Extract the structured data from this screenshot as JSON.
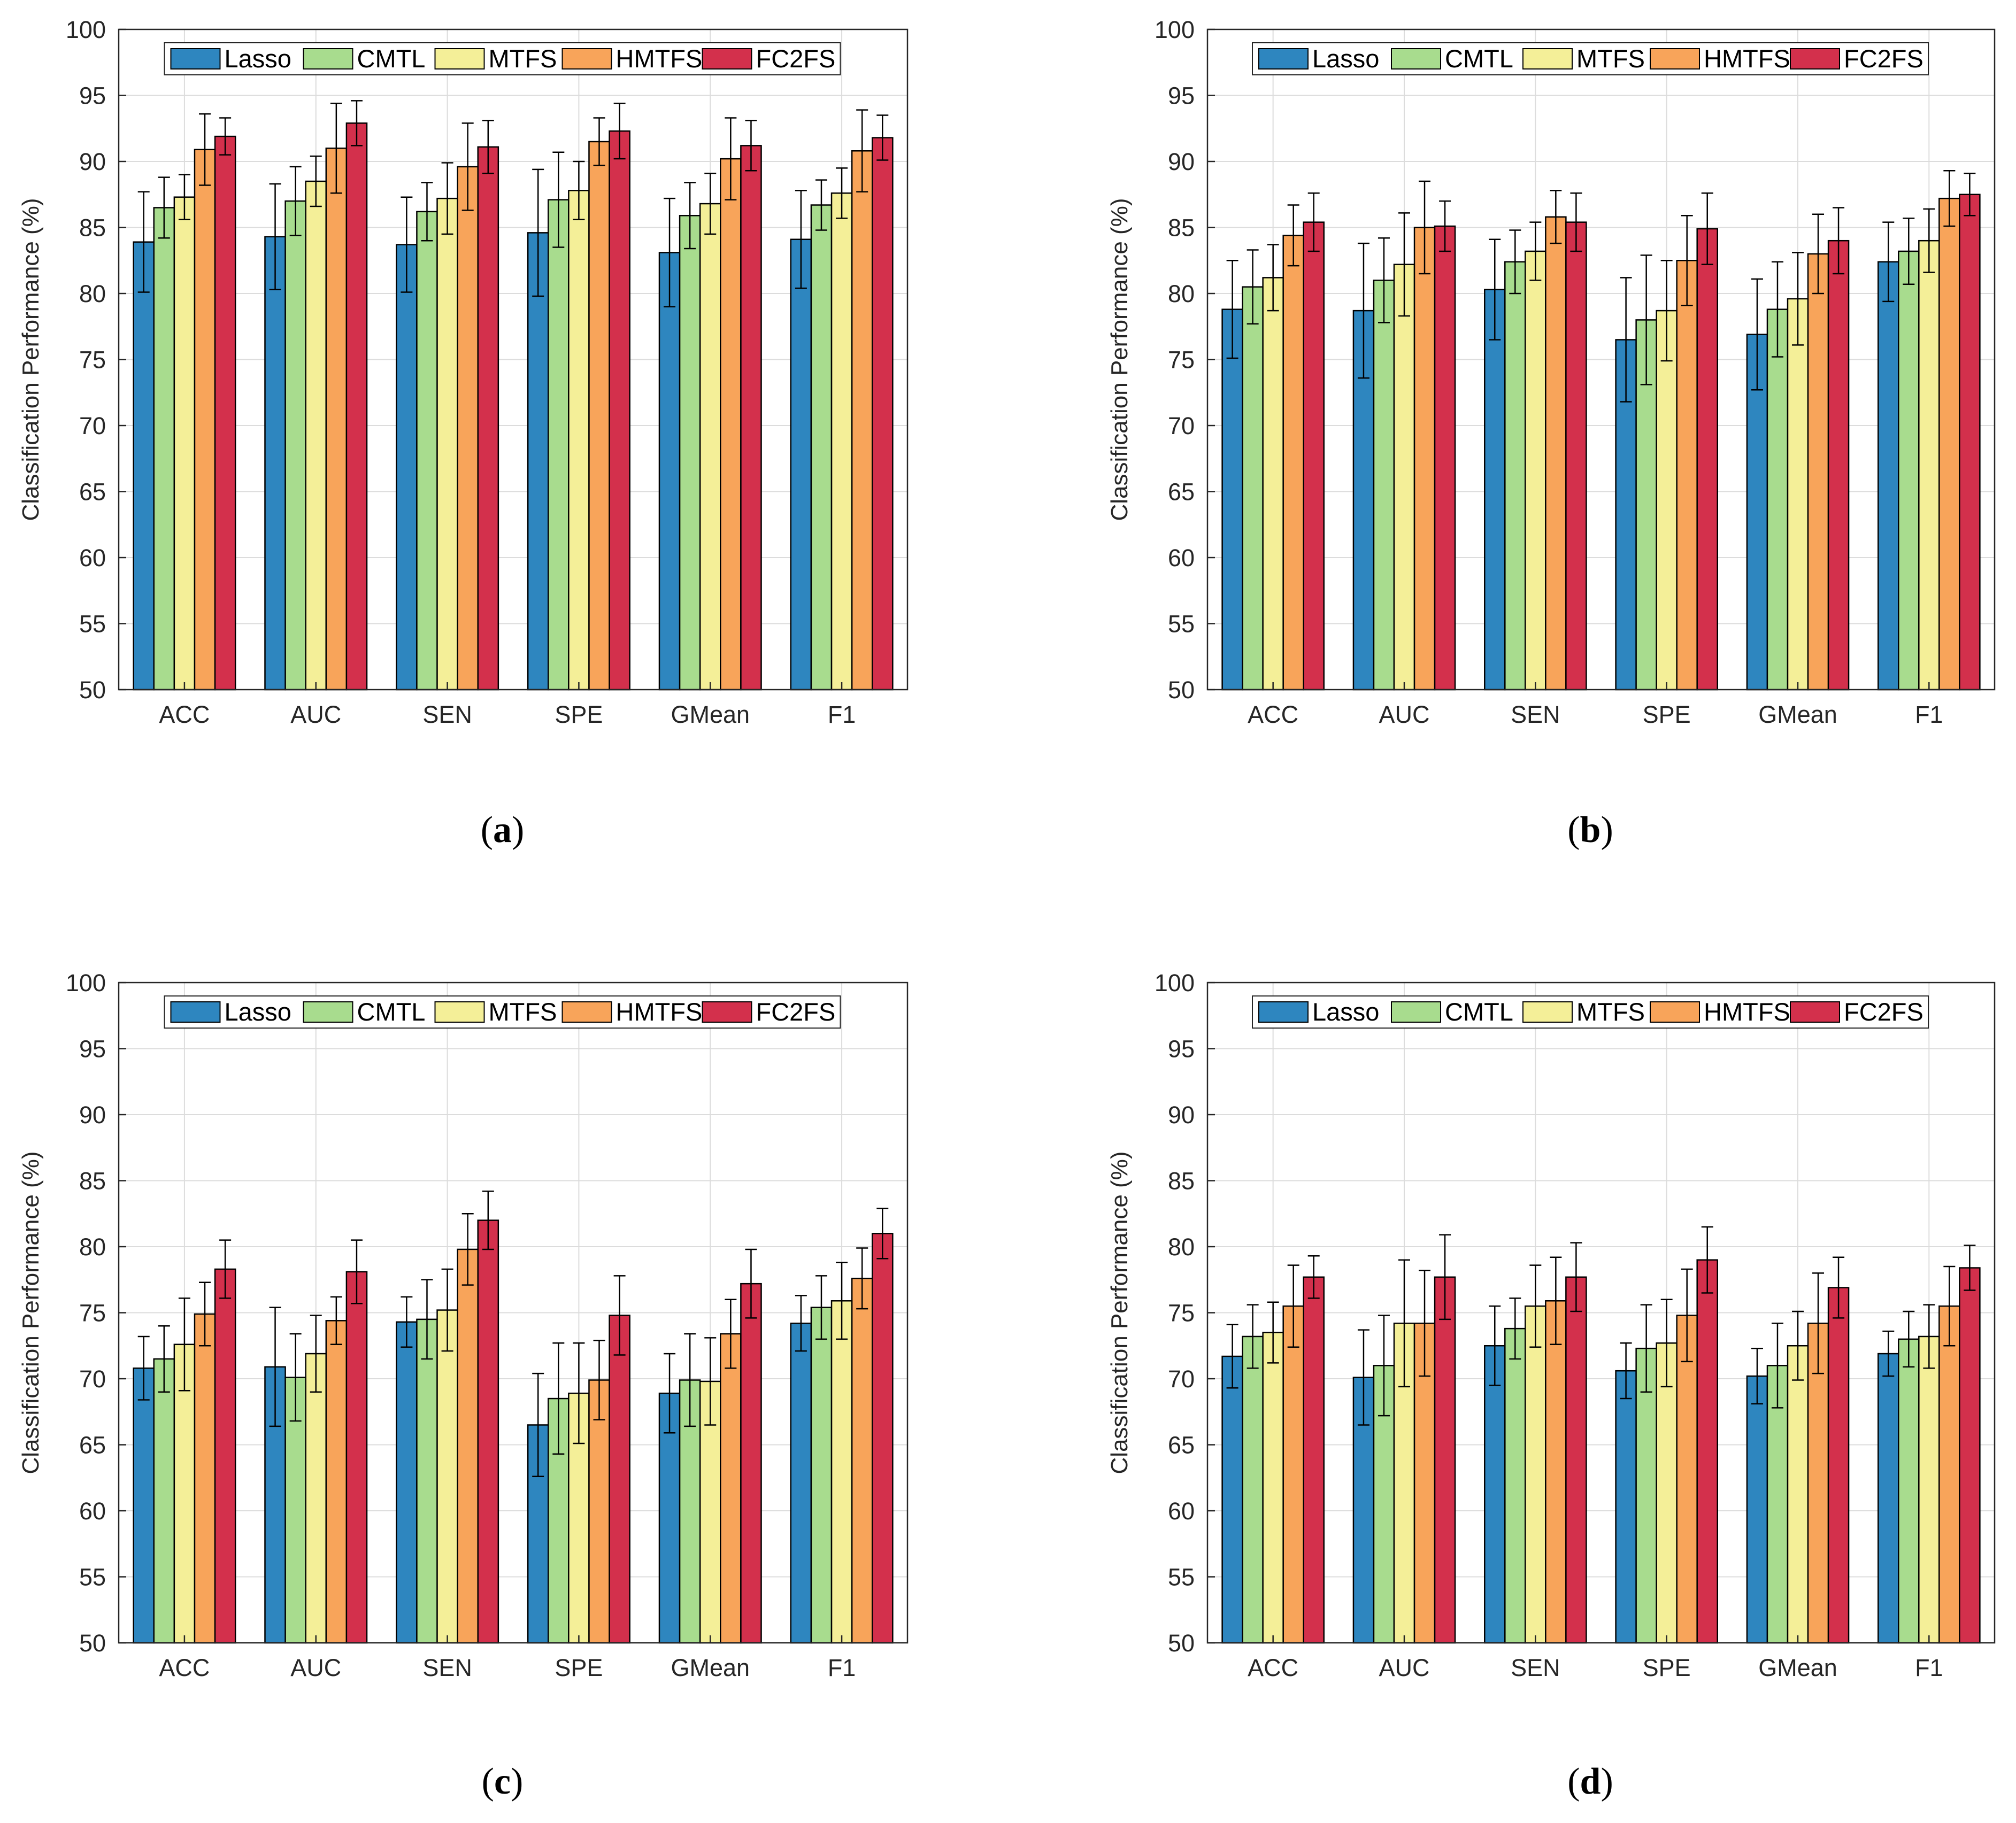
{
  "colors": {
    "Lasso": "#2e86bf",
    "CMTL": "#a8dc8e",
    "MTFS": "#f4ef98",
    "HMTFS": "#f8a45a",
    "FC2FS": "#d3304c",
    "grid": "#dcdcdc",
    "axis": "#262626",
    "errorbar": "#000000"
  },
  "chart_data": [
    {
      "type": "bar",
      "panel_label": "a",
      "ylabel": "Classification Performance (%)",
      "ylim": [
        50,
        100
      ],
      "yticks": [
        "50",
        "55",
        "60",
        "65",
        "70",
        "75",
        "80",
        "85",
        "90",
        "95",
        "100"
      ],
      "grid": true,
      "legend_location": "top",
      "categories": [
        "ACC",
        "AUC",
        "SEN",
        "SPE",
        "GMean",
        "F1"
      ],
      "series": [
        {
          "name": "Lasso",
          "values": [
            83.9,
            84.3,
            83.7,
            84.6,
            83.1,
            84.1
          ],
          "errors": [
            3.8,
            4.0,
            3.6,
            4.8,
            4.1,
            3.7
          ]
        },
        {
          "name": "CMTL",
          "values": [
            86.5,
            87.0,
            86.2,
            87.1,
            85.9,
            86.7
          ],
          "errors": [
            2.3,
            2.6,
            2.2,
            3.6,
            2.5,
            1.9
          ]
        },
        {
          "name": "MTFS",
          "values": [
            87.3,
            88.5,
            87.2,
            87.8,
            86.8,
            87.6
          ],
          "errors": [
            1.7,
            1.9,
            2.7,
            2.2,
            2.3,
            1.9
          ]
        },
        {
          "name": "HMTFS",
          "values": [
            90.9,
            91.0,
            89.6,
            91.5,
            90.2,
            90.8
          ],
          "errors": [
            2.7,
            3.4,
            3.3,
            1.8,
            3.1,
            3.1
          ]
        },
        {
          "name": "FC2FS",
          "values": [
            91.9,
            92.9,
            91.1,
            92.3,
            91.2,
            91.8
          ],
          "errors": [
            1.4,
            1.7,
            2.0,
            2.1,
            1.9,
            1.7
          ]
        }
      ]
    },
    {
      "type": "bar",
      "panel_label": "b",
      "ylabel": "Classification Performance (%)",
      "ylim": [
        50,
        100
      ],
      "yticks": [
        "50",
        "55",
        "60",
        "65",
        "70",
        "75",
        "80",
        "85",
        "90",
        "95",
        "100"
      ],
      "grid": true,
      "legend_location": "top",
      "categories": [
        "ACC",
        "AUC",
        "SEN",
        "SPE",
        "GMean",
        "F1"
      ],
      "series": [
        {
          "name": "Lasso",
          "values": [
            78.8,
            78.7,
            80.3,
            76.5,
            76.9,
            82.4
          ],
          "errors": [
            3.7,
            5.1,
            3.8,
            4.7,
            4.2,
            3.0
          ]
        },
        {
          "name": "CMTL",
          "values": [
            80.5,
            81.0,
            82.4,
            78.0,
            78.8,
            83.2
          ],
          "errors": [
            2.8,
            3.2,
            2.4,
            4.9,
            3.6,
            2.5
          ]
        },
        {
          "name": "MTFS",
          "values": [
            81.2,
            82.2,
            83.2,
            78.7,
            79.6,
            84.0
          ],
          "errors": [
            2.5,
            3.9,
            2.2,
            3.8,
            3.5,
            2.4
          ]
        },
        {
          "name": "HMTFS",
          "values": [
            84.4,
            85.0,
            85.8,
            82.5,
            83.0,
            87.2
          ],
          "errors": [
            2.3,
            3.5,
            2.0,
            3.4,
            3.0,
            2.1
          ]
        },
        {
          "name": "FC2FS",
          "values": [
            85.4,
            85.1,
            85.4,
            84.9,
            84.0,
            87.5
          ],
          "errors": [
            2.2,
            1.9,
            2.2,
            2.7,
            2.5,
            1.6
          ]
        }
      ]
    },
    {
      "type": "bar",
      "panel_label": "c",
      "ylabel": "Classification Performance (%)",
      "ylim": [
        50,
        100
      ],
      "yticks": [
        "50",
        "55",
        "60",
        "65",
        "70",
        "75",
        "80",
        "85",
        "90",
        "95",
        "100"
      ],
      "grid": true,
      "legend_location": "top",
      "categories": [
        "ACC",
        "AUC",
        "SEN",
        "SPE",
        "GMean",
        "F1"
      ],
      "series": [
        {
          "name": "Lasso",
          "values": [
            70.8,
            70.9,
            74.3,
            66.5,
            68.9,
            74.2
          ],
          "errors": [
            2.4,
            4.5,
            1.9,
            3.9,
            3.0,
            2.1
          ]
        },
        {
          "name": "CMTL",
          "values": [
            71.5,
            70.1,
            74.5,
            68.5,
            69.9,
            75.4
          ],
          "errors": [
            2.5,
            3.3,
            3.0,
            4.2,
            3.5,
            2.4
          ]
        },
        {
          "name": "MTFS",
          "values": [
            72.6,
            71.9,
            75.2,
            68.9,
            69.8,
            75.9
          ],
          "errors": [
            3.5,
            2.9,
            3.1,
            3.8,
            3.3,
            2.9
          ]
        },
        {
          "name": "HMTFS",
          "values": [
            74.9,
            74.4,
            79.8,
            69.9,
            73.4,
            77.6
          ],
          "errors": [
            2.4,
            1.8,
            2.7,
            3.0,
            2.6,
            2.3
          ]
        },
        {
          "name": "FC2FS",
          "values": [
            78.3,
            78.1,
            82.0,
            74.8,
            77.2,
            81.0
          ],
          "errors": [
            2.2,
            2.4,
            2.2,
            3.0,
            2.6,
            1.9
          ]
        }
      ]
    },
    {
      "type": "bar",
      "panel_label": "d",
      "ylabel": "Classification Performance (%)",
      "ylim": [
        50,
        100
      ],
      "yticks": [
        "50",
        "55",
        "60",
        "65",
        "70",
        "75",
        "80",
        "85",
        "90",
        "95",
        "100"
      ],
      "grid": true,
      "legend_location": "top",
      "categories": [
        "ACC",
        "AUC",
        "SEN",
        "SPE",
        "GMean",
        "F1"
      ],
      "series": [
        {
          "name": "Lasso",
          "values": [
            71.7,
            70.1,
            72.5,
            70.6,
            70.2,
            71.9
          ],
          "errors": [
            2.4,
            3.6,
            3.0,
            2.1,
            2.1,
            1.7
          ]
        },
        {
          "name": "CMTL",
          "values": [
            73.2,
            71.0,
            73.8,
            72.3,
            71.0,
            73.0
          ],
          "errors": [
            2.4,
            3.8,
            2.3,
            3.3,
            3.2,
            2.1
          ]
        },
        {
          "name": "MTFS",
          "values": [
            73.5,
            74.2,
            75.5,
            72.7,
            72.5,
            73.2
          ],
          "errors": [
            2.3,
            4.8,
            3.1,
            3.3,
            2.6,
            2.4
          ]
        },
        {
          "name": "HMTFS",
          "values": [
            75.5,
            74.2,
            75.9,
            74.8,
            74.2,
            75.5
          ],
          "errors": [
            3.1,
            4.0,
            3.3,
            3.5,
            3.8,
            3.0
          ]
        },
        {
          "name": "FC2FS",
          "values": [
            77.7,
            77.7,
            77.7,
            79.0,
            76.9,
            78.4
          ],
          "errors": [
            1.6,
            3.2,
            2.6,
            2.5,
            2.3,
            1.7
          ]
        }
      ]
    }
  ]
}
